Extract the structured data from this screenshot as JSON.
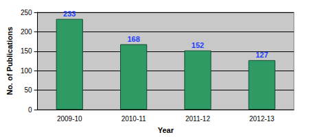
{
  "chart_data": {
    "type": "bar",
    "x_label": "Year",
    "y_label": "No. of Publications",
    "categories": [
      "2009-10",
      "2010-11",
      "2011-12",
      "2012-13"
    ],
    "values": [
      233,
      168,
      152,
      127
    ],
    "color": "#2e9a64",
    "ylim": [
      0,
      250
    ],
    "yticks": [
      0,
      50,
      100,
      150,
      200,
      250
    ],
    "grid": true,
    "data_labels": true
  }
}
